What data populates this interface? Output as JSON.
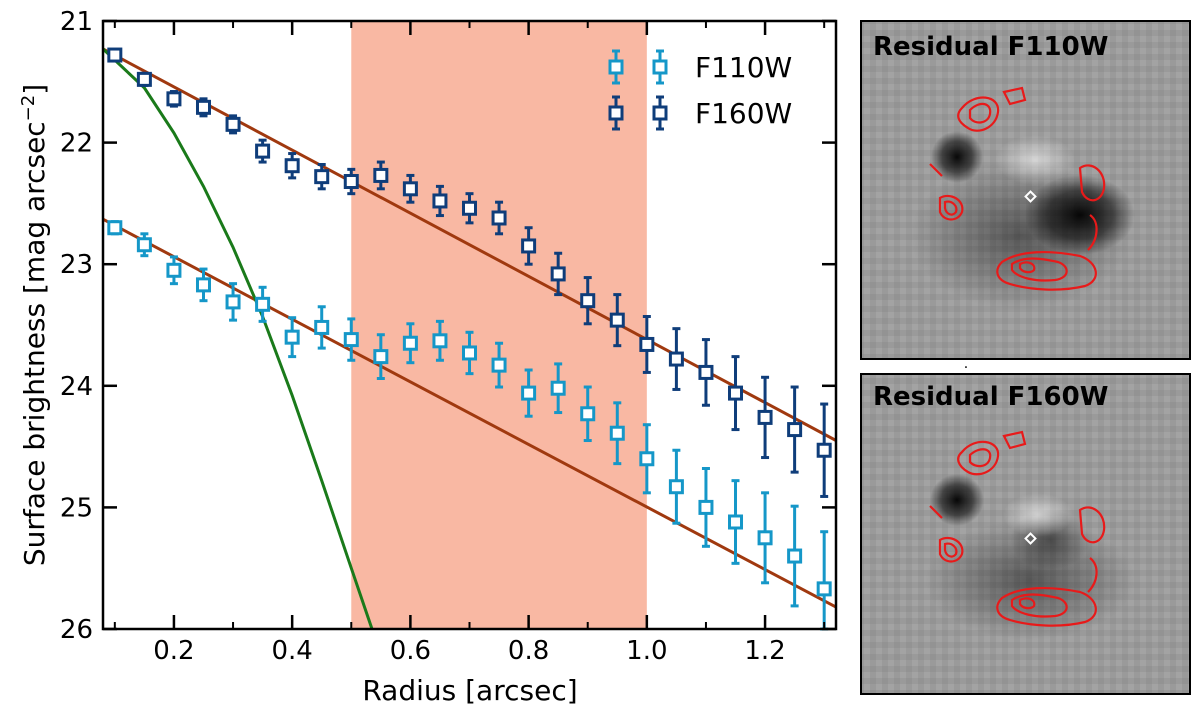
{
  "chart_data": [
    {
      "type": "scatter",
      "title": "",
      "xlabel": "Radius [arcsec]",
      "ylabel_main": "Surface brightness [mag arcsec",
      "ylabel_exp": "−2",
      "ylabel_end": "]",
      "xlim": [
        0.08,
        1.32
      ],
      "ylim": [
        26,
        21
      ],
      "y_inverted": true,
      "x_ticks": [
        0.2,
        0.4,
        0.6,
        0.8,
        1.0,
        1.2
      ],
      "x_tick_labels": [
        "0.2",
        "0.4",
        "0.6",
        "0.8",
        "1.0",
        "1.2"
      ],
      "y_ticks": [
        21,
        22,
        23,
        24,
        25,
        26
      ],
      "y_tick_labels": [
        "21",
        "22",
        "23",
        "24",
        "25",
        "26"
      ],
      "shaded_region": {
        "x": [
          0.5,
          1.0
        ],
        "color": "#f9b8a3"
      },
      "legend": {
        "position": "top-right",
        "entries": [
          "F110W",
          "F160W"
        ]
      },
      "series": [
        {
          "name": "F110W",
          "color": "#1597c8",
          "marker": "open-square",
          "x": [
            0.1,
            0.15,
            0.2,
            0.25,
            0.3,
            0.35,
            0.4,
            0.45,
            0.5,
            0.55,
            0.6,
            0.65,
            0.7,
            0.75,
            0.8,
            0.85,
            0.9,
            0.95,
            1.0,
            1.05,
            1.1,
            1.15,
            1.2,
            1.25,
            1.3
          ],
          "y": [
            22.7,
            22.84,
            23.05,
            23.17,
            23.31,
            23.33,
            23.6,
            23.52,
            23.62,
            23.76,
            23.65,
            23.63,
            23.73,
            23.83,
            24.06,
            24.02,
            24.23,
            24.39,
            24.6,
            24.83,
            25.0,
            25.12,
            25.25,
            25.4,
            25.67
          ],
          "yerr": [
            0.05,
            0.09,
            0.11,
            0.13,
            0.15,
            0.14,
            0.16,
            0.17,
            0.17,
            0.18,
            0.16,
            0.16,
            0.17,
            0.18,
            0.19,
            0.2,
            0.22,
            0.25,
            0.28,
            0.3,
            0.32,
            0.34,
            0.37,
            0.41,
            0.47
          ]
        },
        {
          "name": "F160W",
          "color": "#0f3d7a",
          "marker": "open-square",
          "x": [
            0.1,
            0.15,
            0.2,
            0.25,
            0.3,
            0.35,
            0.4,
            0.45,
            0.5,
            0.55,
            0.6,
            0.65,
            0.7,
            0.75,
            0.8,
            0.85,
            0.9,
            0.95,
            1.0,
            1.05,
            1.1,
            1.15,
            1.2,
            1.25,
            1.3
          ],
          "y": [
            21.28,
            21.48,
            21.64,
            21.71,
            21.85,
            22.07,
            22.19,
            22.28,
            22.32,
            22.27,
            22.38,
            22.48,
            22.54,
            22.62,
            22.85,
            23.08,
            23.3,
            23.46,
            23.66,
            23.78,
            23.89,
            24.06,
            24.26,
            24.36,
            24.53
          ],
          "yerr": [
            0.04,
            0.05,
            0.06,
            0.07,
            0.07,
            0.09,
            0.1,
            0.1,
            0.1,
            0.11,
            0.11,
            0.12,
            0.12,
            0.13,
            0.15,
            0.17,
            0.19,
            0.21,
            0.23,
            0.25,
            0.27,
            0.3,
            0.33,
            0.35,
            0.38
          ]
        }
      ],
      "model_curves": [
        {
          "name": "fit-F160W",
          "color": "#a0390f",
          "type": "linear",
          "points": [
            [
              0.08,
              21.23
            ],
            [
              1.32,
              24.45
            ]
          ]
        },
        {
          "name": "fit-F110W",
          "color": "#a0390f",
          "type": "linear",
          "points": [
            [
              0.08,
              22.63
            ],
            [
              1.32,
              25.82
            ]
          ]
        },
        {
          "name": "psf-curve",
          "color": "#1a7a1a",
          "type": "curve",
          "points": [
            [
              0.08,
              21.23
            ],
            [
              0.15,
              21.55
            ],
            [
              0.2,
              21.92
            ],
            [
              0.25,
              22.36
            ],
            [
              0.3,
              22.86
            ],
            [
              0.35,
              23.43
            ],
            [
              0.4,
              24.08
            ],
            [
              0.45,
              24.78
            ],
            [
              0.5,
              25.5
            ],
            [
              0.535,
              26.0
            ]
          ]
        }
      ]
    }
  ],
  "panels": {
    "top_title": "Residual F110W",
    "bottom_title": "Residual F160W"
  }
}
